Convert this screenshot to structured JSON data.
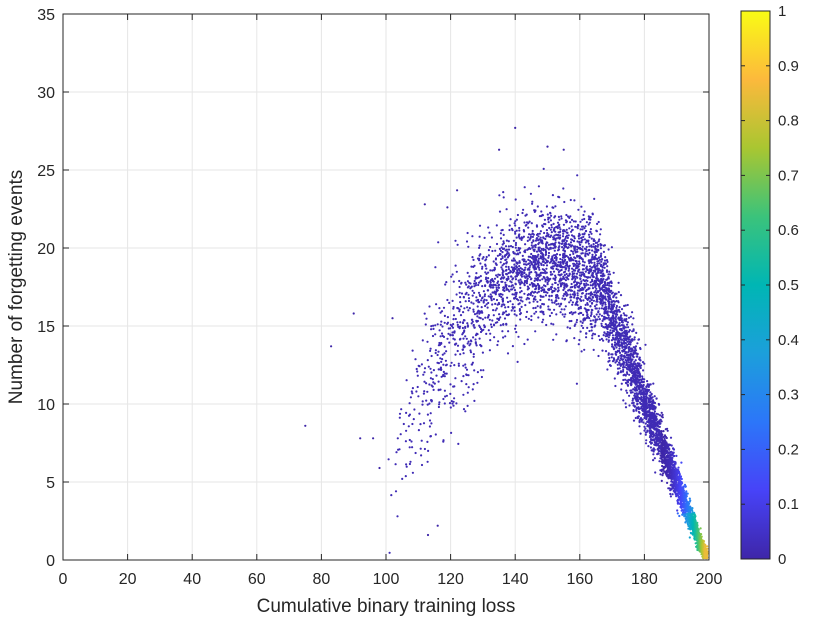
{
  "chart_data": {
    "type": "scatter",
    "title": "",
    "xlabel": "Cumulative binary training loss",
    "ylabel": "Number of forgetting events",
    "xlim": [
      0,
      200
    ],
    "ylim": [
      0,
      35
    ],
    "xticks": [
      "0",
      "20",
      "40",
      "60",
      "80",
      "100",
      "120",
      "140",
      "160",
      "180",
      "200"
    ],
    "yticks": [
      "0",
      "5",
      "10",
      "15",
      "20",
      "25",
      "30",
      "35"
    ],
    "grid": true,
    "colorbar": {
      "label": "",
      "range": [
        0,
        1
      ],
      "ticks": [
        "0",
        "0.1",
        "0.2",
        "0.3",
        "0.4",
        "0.5",
        "0.6",
        "0.7",
        "0.8",
        "0.9",
        "1"
      ],
      "colormap": "parula",
      "colors": [
        "#3e26a8",
        "#4743f8",
        "#2c76f9",
        "#1c9fdb",
        "#00b6b4",
        "#3bc37b",
        "#a9c631",
        "#fcb93c",
        "#f9fb15"
      ]
    },
    "points": [
      {
        "x": 75,
        "y": 8.6,
        "c": 0.0
      },
      {
        "x": 83,
        "y": 13.7,
        "c": 0.0
      },
      {
        "x": 90,
        "y": 15.8,
        "c": 0.0
      },
      {
        "x": 92,
        "y": 7.8,
        "c": 0.0
      },
      {
        "x": 96,
        "y": 7.8,
        "c": 0.0
      },
      {
        "x": 98,
        "y": 5.9,
        "c": 0.0
      },
      {
        "x": 102,
        "y": 15.5,
        "c": 0.0
      },
      {
        "x": 112,
        "y": 22.8,
        "c": 0.0
      },
      {
        "x": 113,
        "y": 1.6,
        "c": 0.0
      },
      {
        "x": 116,
        "y": 2.2,
        "c": 0.0
      },
      {
        "x": 119,
        "y": 22.6,
        "c": 0.0
      },
      {
        "x": 122,
        "y": 23.7,
        "c": 0.0
      },
      {
        "x": 135,
        "y": 26.3,
        "c": 0.0
      },
      {
        "x": 140,
        "y": 27.7,
        "c": 0.0
      },
      {
        "x": 150,
        "y": 26.5,
        "c": 0.0
      },
      {
        "x": 155,
        "y": 26.3,
        "c": 0.0
      },
      {
        "x": 196,
        "y": 2.2,
        "c": 0.8
      },
      {
        "x": 197,
        "y": 1.6,
        "c": 0.85
      },
      {
        "x": 198,
        "y": 1.2,
        "c": 0.9
      },
      {
        "x": 198.5,
        "y": 0.8,
        "c": 0.95
      }
    ]
  }
}
